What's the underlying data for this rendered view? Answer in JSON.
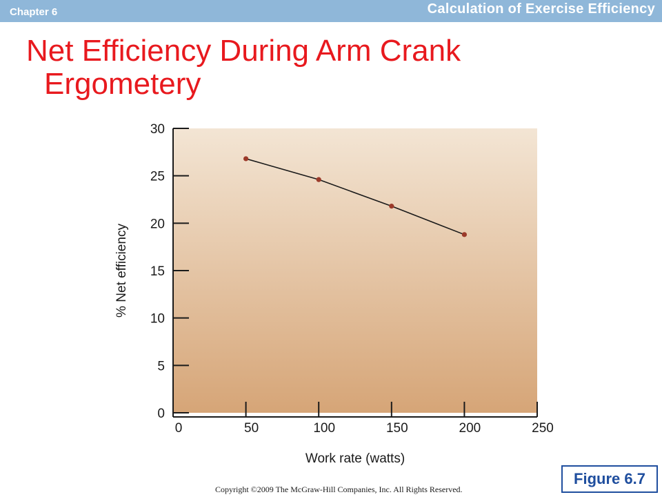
{
  "header": {
    "chapter": "Chapter 6",
    "section": "Calculation of Exercise Efficiency"
  },
  "title": {
    "line1": "Net Efficiency During Arm Crank",
    "line2": "Ergometery"
  },
  "figure_label": "Figure 6.7",
  "copyright": "Copyright ©2009 The McGraw-Hill Companies, Inc. All Rights Reserved.",
  "colors": {
    "header_bar": "#8fb7d9",
    "title": "#e8191e",
    "plot_bg_top": "#f3e5d4",
    "plot_bg_bottom": "#d6a577",
    "point": "#9b3a2a",
    "line": "#1a1a1a",
    "figure_box": "#1f4e9e"
  },
  "chart_data": {
    "type": "line",
    "title": "",
    "xlabel": "Work rate (watts)",
    "ylabel": "% Net efficiency",
    "xlim": [
      0,
      250
    ],
    "ylim": [
      0,
      30
    ],
    "x_ticks": [
      0,
      50,
      100,
      150,
      200,
      250
    ],
    "y_ticks": [
      0,
      5,
      10,
      15,
      20,
      25,
      30
    ],
    "grid": false,
    "legend": "none",
    "series": [
      {
        "x": [
          50,
          100,
          150,
          200
        ],
        "y": [
          26.8,
          24.6,
          21.8,
          18.8
        ]
      }
    ]
  }
}
